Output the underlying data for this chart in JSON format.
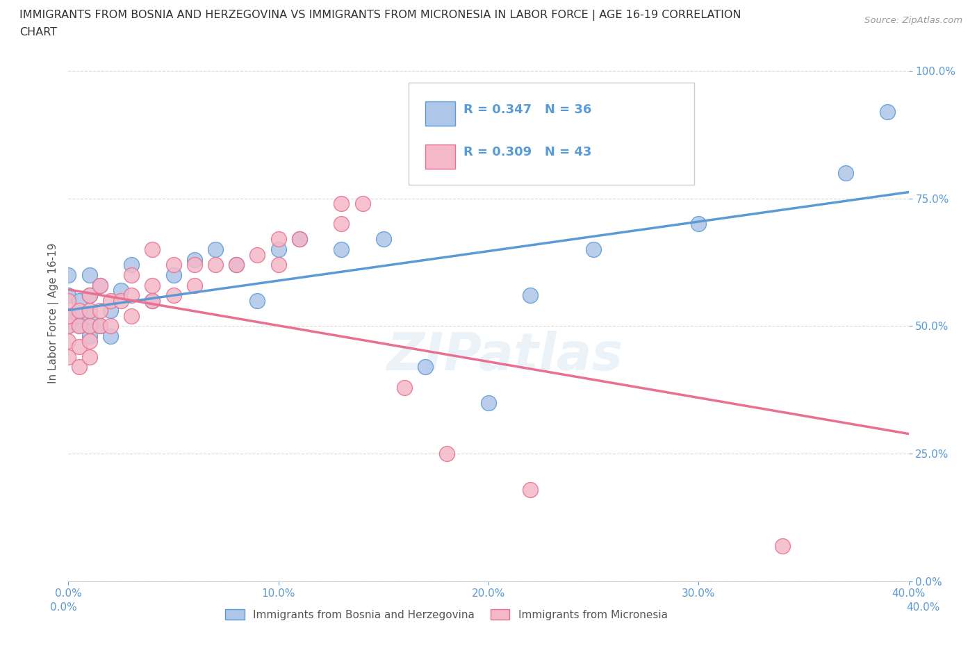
{
  "title_line1": "IMMIGRANTS FROM BOSNIA AND HERZEGOVINA VS IMMIGRANTS FROM MICRONESIA IN LABOR FORCE | AGE 16-19 CORRELATION",
  "title_line2": "CHART",
  "source": "Source: ZipAtlas.com",
  "ylabel": "In Labor Force | Age 16-19",
  "xlim": [
    0.0,
    0.4
  ],
  "ylim": [
    0.0,
    1.05
  ],
  "x_ticks": [
    0.0,
    0.1,
    0.2,
    0.3,
    0.4
  ],
  "x_tick_labels": [
    "0.0%",
    "10.0%",
    "20.0%",
    "30.0%",
    "40.0%"
  ],
  "y_ticks": [
    0.0,
    0.25,
    0.5,
    0.75,
    1.0
  ],
  "y_tick_labels": [
    "0.0%",
    "25.0%",
    "50.0%",
    "75.0%",
    "100.0%"
  ],
  "bosnia_color": "#aec6e8",
  "micronesia_color": "#f4b8c8",
  "bosnia_edge": "#5b9bd5",
  "micronesia_edge": "#e87090",
  "trend_bosnia_color": "#5b9bd5",
  "trend_micronesia_color": "#e87090",
  "R_bosnia": 0.347,
  "N_bosnia": 36,
  "R_micronesia": 0.309,
  "N_micronesia": 43,
  "legend_bosnia": "Immigrants from Bosnia and Herzegovina",
  "legend_micronesia": "Immigrants from Micronesia",
  "watermark": "ZIPatlas",
  "bosnia_x": [
    0.0,
    0.0,
    0.0,
    0.0,
    0.0,
    0.005,
    0.005,
    0.005,
    0.01,
    0.01,
    0.01,
    0.01,
    0.01,
    0.015,
    0.015,
    0.02,
    0.02,
    0.025,
    0.03,
    0.04,
    0.05,
    0.06,
    0.07,
    0.08,
    0.09,
    0.1,
    0.11,
    0.13,
    0.15,
    0.17,
    0.2,
    0.22,
    0.25,
    0.3,
    0.37,
    0.39
  ],
  "bosnia_y": [
    0.5,
    0.51,
    0.52,
    0.56,
    0.6,
    0.5,
    0.52,
    0.55,
    0.48,
    0.5,
    0.52,
    0.56,
    0.6,
    0.5,
    0.58,
    0.48,
    0.53,
    0.57,
    0.62,
    0.55,
    0.6,
    0.63,
    0.65,
    0.62,
    0.55,
    0.65,
    0.67,
    0.65,
    0.67,
    0.42,
    0.35,
    0.56,
    0.65,
    0.7,
    0.8,
    0.92
  ],
  "micronesia_x": [
    0.0,
    0.0,
    0.0,
    0.0,
    0.0,
    0.005,
    0.005,
    0.005,
    0.005,
    0.01,
    0.01,
    0.01,
    0.01,
    0.01,
    0.015,
    0.015,
    0.015,
    0.02,
    0.02,
    0.025,
    0.03,
    0.03,
    0.03,
    0.04,
    0.04,
    0.04,
    0.05,
    0.05,
    0.06,
    0.06,
    0.07,
    0.08,
    0.09,
    0.1,
    0.1,
    0.11,
    0.13,
    0.13,
    0.14,
    0.16,
    0.18,
    0.22,
    0.34
  ],
  "micronesia_y": [
    0.44,
    0.47,
    0.5,
    0.52,
    0.55,
    0.42,
    0.46,
    0.5,
    0.53,
    0.44,
    0.47,
    0.5,
    0.53,
    0.56,
    0.5,
    0.53,
    0.58,
    0.5,
    0.55,
    0.55,
    0.52,
    0.56,
    0.6,
    0.55,
    0.58,
    0.65,
    0.56,
    0.62,
    0.58,
    0.62,
    0.62,
    0.62,
    0.64,
    0.62,
    0.67,
    0.67,
    0.7,
    0.74,
    0.74,
    0.38,
    0.25,
    0.18,
    0.07
  ],
  "background_color": "#ffffff",
  "grid_color": "#cccccc",
  "grid_linestyle": "--"
}
